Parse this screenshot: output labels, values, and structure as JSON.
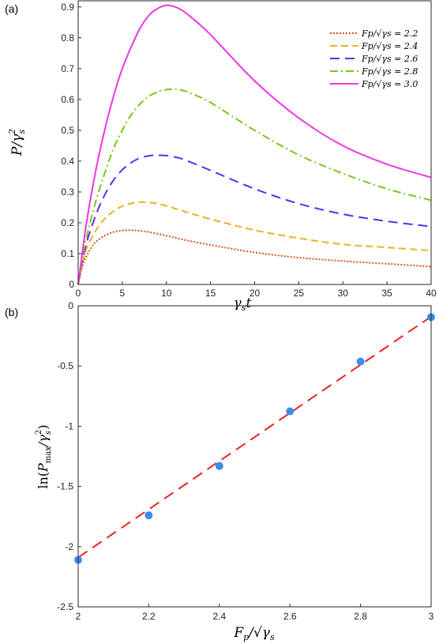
{
  "chart_data": [
    {
      "panel_label": "(a)",
      "type": "line",
      "xlabel": "γst",
      "ylabel": "P/γs²",
      "xlim": [
        0,
        40
      ],
      "ylim": [
        0,
        0.92
      ],
      "x_ticks": [
        "0",
        "5",
        "10",
        "15",
        "20",
        "25",
        "30",
        "35",
        "40"
      ],
      "y_ticks": [
        "0",
        "0.1",
        "0.2",
        "0.3",
        "0.4",
        "0.5",
        "0.6",
        "0.7",
        "0.8",
        "0.9"
      ],
      "legend_position": "top-right",
      "series": [
        {
          "name": "Fp/√γs = 2.2",
          "color": "#d95319",
          "style": "dotted",
          "points": [
            [
              0,
              0
            ],
            [
              0.5,
              0.06
            ],
            [
              1,
              0.095
            ],
            [
              1.5,
              0.12
            ],
            [
              2,
              0.138
            ],
            [
              3,
              0.158
            ],
            [
              4,
              0.17
            ],
            [
              5,
              0.175
            ],
            [
              6,
              0.176
            ],
            [
              7,
              0.174
            ],
            [
              8,
              0.17
            ],
            [
              10,
              0.158
            ],
            [
              12,
              0.145
            ],
            [
              15,
              0.128
            ],
            [
              20,
              0.104
            ],
            [
              25,
              0.087
            ],
            [
              30,
              0.076
            ],
            [
              35,
              0.067
            ],
            [
              40,
              0.058
            ]
          ]
        },
        {
          "name": "Fp/√γs = 2.4",
          "color": "#edb120",
          "style": "dashed",
          "points": [
            [
              0,
              0
            ],
            [
              0.5,
              0.07
            ],
            [
              1,
              0.12
            ],
            [
              2,
              0.175
            ],
            [
              3,
              0.213
            ],
            [
              4,
              0.238
            ],
            [
              5,
              0.254
            ],
            [
              6,
              0.263
            ],
            [
              7,
              0.267
            ],
            [
              8,
              0.266
            ],
            [
              9,
              0.262
            ],
            [
              10,
              0.255
            ],
            [
              12,
              0.237
            ],
            [
              15,
              0.212
            ],
            [
              20,
              0.176
            ],
            [
              25,
              0.15
            ],
            [
              30,
              0.13
            ],
            [
              35,
              0.12
            ],
            [
              40,
              0.11
            ]
          ]
        },
        {
          "name": "Fp/√γs = 2.6",
          "color": "#5b2cf2",
          "style": "dashed-long",
          "points": [
            [
              0,
              0
            ],
            [
              0.5,
              0.08
            ],
            [
              1,
              0.14
            ],
            [
              2,
              0.225
            ],
            [
              3,
              0.29
            ],
            [
              4,
              0.338
            ],
            [
              5,
              0.372
            ],
            [
              6,
              0.395
            ],
            [
              7,
              0.41
            ],
            [
              8,
              0.417
            ],
            [
              9,
              0.419
            ],
            [
              10,
              0.418
            ],
            [
              11,
              0.413
            ],
            [
              12,
              0.405
            ],
            [
              15,
              0.37
            ],
            [
              20,
              0.31
            ],
            [
              25,
              0.262
            ],
            [
              30,
              0.228
            ],
            [
              35,
              0.205
            ],
            [
              40,
              0.188
            ]
          ]
        },
        {
          "name": "Fp/√γs = 2.8",
          "color": "#77c81b",
          "style": "dash-dot",
          "points": [
            [
              0,
              0
            ],
            [
              0.5,
              0.09
            ],
            [
              1,
              0.16
            ],
            [
              2,
              0.27
            ],
            [
              3,
              0.36
            ],
            [
              4,
              0.44
            ],
            [
              5,
              0.5
            ],
            [
              6,
              0.55
            ],
            [
              7,
              0.585
            ],
            [
              8,
              0.61
            ],
            [
              9,
              0.624
            ],
            [
              10,
              0.632
            ],
            [
              11,
              0.633
            ],
            [
              12,
              0.628
            ],
            [
              13,
              0.617
            ],
            [
              15,
              0.59
            ],
            [
              20,
              0.5
            ],
            [
              25,
              0.42
            ],
            [
              30,
              0.36
            ],
            [
              35,
              0.31
            ],
            [
              40,
              0.273
            ]
          ]
        },
        {
          "name": "Fp/√γs = 3.0",
          "color": "#ee36e5",
          "style": "solid",
          "points": [
            [
              0,
              0
            ],
            [
              0.5,
              0.11
            ],
            [
              1,
              0.21
            ],
            [
              2,
              0.37
            ],
            [
              3,
              0.5
            ],
            [
              4,
              0.61
            ],
            [
              5,
              0.7
            ],
            [
              6,
              0.77
            ],
            [
              7,
              0.83
            ],
            [
              8,
              0.872
            ],
            [
              9,
              0.895
            ],
            [
              10,
              0.905
            ],
            [
              11,
              0.9
            ],
            [
              12,
              0.885
            ],
            [
              13,
              0.862
            ],
            [
              15,
              0.81
            ],
            [
              20,
              0.66
            ],
            [
              25,
              0.54
            ],
            [
              30,
              0.45
            ],
            [
              35,
              0.39
            ],
            [
              40,
              0.347
            ]
          ]
        }
      ]
    },
    {
      "panel_label": "(b)",
      "type": "scatter",
      "xlabel": "Fp/√γs",
      "ylabel": "ln(Pmax/γs²)",
      "xlim": [
        2,
        3
      ],
      "ylim": [
        -2.5,
        0
      ],
      "x_ticks": [
        "2",
        "2.2",
        "2.4",
        "2.6",
        "2.8",
        "3"
      ],
      "y_ticks": [
        "0",
        "-0.5",
        "-1",
        "-1.5",
        "-2",
        "-2.5"
      ],
      "points": {
        "color": "#3a8eed",
        "x": [
          2.0,
          2.2,
          2.4,
          2.6,
          2.8,
          3.0
        ],
        "y": [
          -2.11,
          -1.74,
          -1.33,
          -0.876,
          -0.463,
          -0.094
        ]
      },
      "fit_line": {
        "color": "#ee2222",
        "style": "dashed",
        "x": [
          2.0,
          3.0
        ],
        "y": [
          -2.09,
          -0.09
        ]
      }
    }
  ]
}
